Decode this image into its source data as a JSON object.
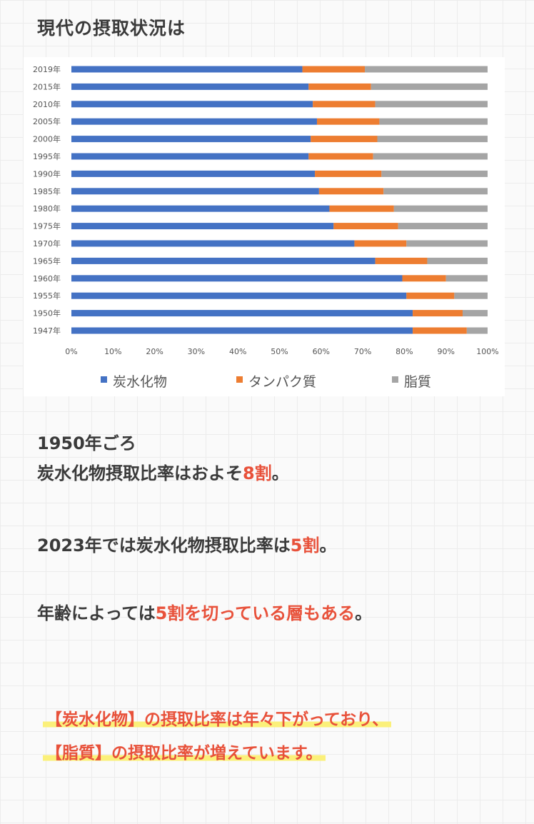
{
  "page": {
    "title": "現代の摂取状況は"
  },
  "chart_data": {
    "type": "bar",
    "orientation": "horizontal",
    "stacked": "percent",
    "categories": [
      "2019年",
      "2015年",
      "2010年",
      "2005年",
      "2000年",
      "1995年",
      "1990年",
      "1985年",
      "1980年",
      "1975年",
      "1970年",
      "1965年",
      "1960年",
      "1955年",
      "1950年",
      "1947年"
    ],
    "series": [
      {
        "name": "炭水化物",
        "color": "#4472c4",
        "values": [
          55.5,
          57,
          58,
          59,
          57.5,
          57,
          58.5,
          59.5,
          62,
          63,
          68,
          73,
          79.5,
          80.5,
          82,
          82
        ]
      },
      {
        "name": "タンパク質",
        "color": "#ed7d31",
        "values": [
          15,
          15,
          15,
          15,
          16,
          15.5,
          16,
          15.5,
          15.5,
          15.5,
          12.5,
          12.5,
          10.5,
          11.5,
          12,
          13
        ]
      },
      {
        "name": "脂質",
        "color": "#a5a5a5",
        "values": [
          29.5,
          28,
          27,
          26,
          26.5,
          27.5,
          25.5,
          25,
          22.5,
          21.5,
          19.5,
          14.5,
          10,
          8,
          6,
          5
        ]
      }
    ],
    "x_ticks": [
      "0%",
      "10%",
      "20%",
      "30%",
      "40%",
      "50%",
      "60%",
      "70%",
      "80%",
      "90%",
      "100%"
    ],
    "xlim": [
      0,
      100
    ],
    "legend": [
      "炭水化物",
      "タンパク質",
      "脂質"
    ],
    "legend_position": "bottom"
  },
  "notes": {
    "p1_line1": "1950年ごろ",
    "p1_line2_pre": "炭水化物摂取比率はおよそ",
    "p1_line2_red": "8割",
    "p1_line2_post": "。",
    "p2_pre": "2023年では炭水化物摂取比率は",
    "p2_red": "5割",
    "p2_post": "。",
    "p3_pre": "年齢によっては",
    "p3_red": "5割を切っている層もある",
    "p3_post": "。"
  },
  "highlight": {
    "line1": "【炭水化物】の摂取比率は年々下がっており、",
    "line2": "【脂質】の摂取比率が増えています。"
  }
}
